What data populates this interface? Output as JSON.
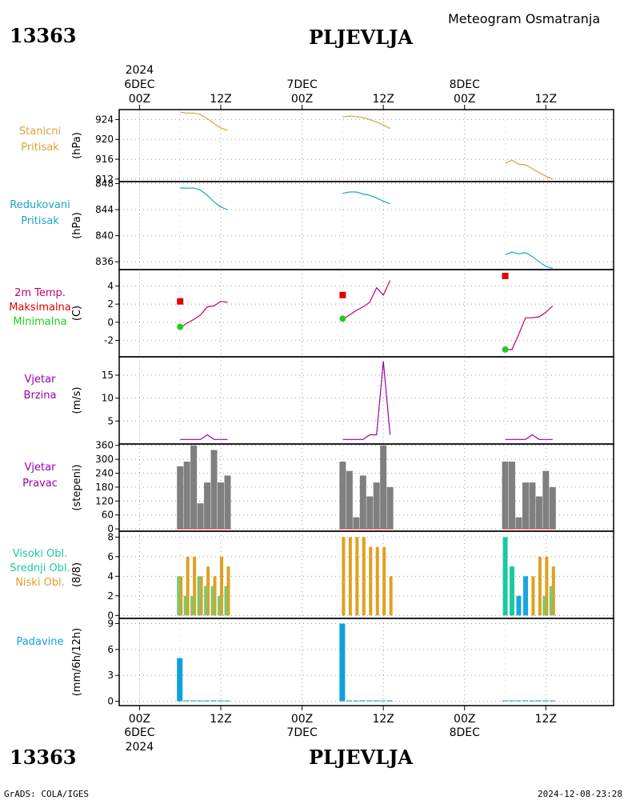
{
  "header": {
    "station_id": "13363",
    "city": "PLJEVLJA",
    "product_title": "Meteogram Osmatranja"
  },
  "footer": {
    "station_id": "13363",
    "city": "PLJEVLJA",
    "credit": "GrADS: COLA/IGES",
    "timestamp": "2024-12-08-23:28"
  },
  "time_axis": {
    "top_year": "2024",
    "bottom_year": "2024",
    "days": [
      "6DEC",
      "7DEC",
      "8DEC"
    ],
    "ticks": [
      "00Z",
      "12Z",
      "00Z",
      "12Z",
      "00Z",
      "12Z"
    ],
    "range_hours": [
      -3,
      70
    ]
  },
  "colors": {
    "pressure": "#d9a23b",
    "reduced": "#1aa6c9",
    "tmax": "#e00000",
    "tmin": "#22cc22",
    "temp_line": "#c0006a",
    "wind": "#9900aa",
    "wind_label": "#9900aa",
    "winddir_bar": "#7f7f7f",
    "high_cloud": "#1ac9a0",
    "mid_cloud": "#1aa6e0",
    "low_cloud": "#e0a020",
    "precip": "#10a0e0"
  },
  "chart_data": [
    {
      "type": "line",
      "panel": "stanicni",
      "label_lines": [
        "Stanicni",
        "Pritisak"
      ],
      "ylabel": "(hPa)",
      "ylim": [
        911.5,
        926
      ],
      "yticks": [
        912,
        916,
        920,
        924
      ],
      "series": [
        {
          "x": [
            6,
            7,
            8,
            9,
            10,
            11,
            12,
            13
          ],
          "values": [
            925.5,
            925.3,
            925.3,
            925.0,
            924.2,
            923.2,
            922.3,
            921.8
          ]
        },
        {
          "x": [
            30,
            31,
            32,
            33,
            34,
            35,
            36,
            37
          ],
          "values": [
            924.5,
            924.7,
            924.6,
            924.4,
            924.0,
            923.5,
            922.9,
            922.2
          ]
        },
        {
          "x": [
            54,
            55,
            56,
            57,
            58,
            59,
            60,
            61
          ],
          "values": [
            915.2,
            915.8,
            915.0,
            914.9,
            914.1,
            913.3,
            912.6,
            912.0
          ]
        }
      ]
    },
    {
      "type": "line",
      "panel": "redukovani",
      "label_lines": [
        "Redukovani",
        "Pritisak"
      ],
      "ylabel": "(hPa)",
      "ylim": [
        834.8,
        848.3
      ],
      "yticks": [
        836,
        840,
        844,
        848
      ],
      "series": [
        {
          "x": [
            6,
            7,
            8,
            9,
            10,
            11,
            12,
            13
          ],
          "values": [
            847.3,
            847.3,
            847.3,
            847.0,
            846.2,
            845.2,
            844.4,
            844.0
          ]
        },
        {
          "x": [
            30,
            31,
            32,
            33,
            34,
            35,
            36,
            37
          ],
          "values": [
            846.5,
            846.7,
            846.7,
            846.4,
            846.2,
            845.8,
            845.3,
            844.9
          ]
        },
        {
          "x": [
            54,
            55,
            56,
            57,
            58,
            59,
            60,
            61
          ],
          "values": [
            837.1,
            837.5,
            837.2,
            837.4,
            836.8,
            836.0,
            835.3,
            835.0
          ]
        }
      ]
    },
    {
      "type": "line",
      "panel": "temperatura",
      "label_lines": [
        "2m Temp.",
        "Maksimalna",
        "Minimalna"
      ],
      "ylabel": "(C)",
      "ylim": [
        -3.8,
        5.8
      ],
      "yticks": [
        -2,
        0,
        2,
        4
      ],
      "series": [
        {
          "x": [
            6,
            7,
            8,
            9,
            10,
            11,
            12,
            13
          ],
          "values": [
            -0.6,
            -0.1,
            0.3,
            0.8,
            1.7,
            1.8,
            2.3,
            2.2
          ]
        },
        {
          "x": [
            30,
            31,
            32,
            33,
            34,
            35,
            36,
            37
          ],
          "values": [
            0.3,
            0.8,
            1.3,
            1.7,
            2.2,
            3.8,
            3.0,
            4.6
          ]
        },
        {
          "x": [
            54,
            55,
            56,
            57,
            58,
            59,
            60,
            61
          ],
          "values": [
            -3.0,
            -3.0,
            -1.3,
            0.5,
            0.5,
            0.6,
            1.1,
            1.8
          ]
        }
      ],
      "tmax": {
        "x": [
          6,
          30,
          54
        ],
        "values": [
          2.3,
          3.0,
          5.1
        ]
      },
      "tmin": {
        "x": [
          6,
          30,
          54
        ],
        "values": [
          -0.5,
          0.4,
          -3.0
        ]
      }
    },
    {
      "type": "line",
      "panel": "vjetar_brzina",
      "label_lines": [
        "Vjetar",
        "Brzina"
      ],
      "ylabel": "(m/s)",
      "ylim": [
        0,
        19
      ],
      "yticks": [
        5,
        10,
        15
      ],
      "series": [
        {
          "x": [
            6,
            7,
            8,
            9,
            10,
            11,
            12,
            13
          ],
          "values": [
            1,
            1,
            1,
            1,
            2,
            1,
            1,
            1
          ]
        },
        {
          "x": [
            30,
            31,
            32,
            33,
            34,
            35,
            36,
            37
          ],
          "values": [
            1,
            1,
            1,
            1,
            2,
            2,
            18,
            2
          ]
        },
        {
          "x": [
            54,
            55,
            56,
            57,
            58,
            59,
            60,
            61
          ],
          "values": [
            1,
            1,
            1,
            1,
            2,
            1,
            1,
            1
          ]
        }
      ]
    },
    {
      "type": "bar",
      "panel": "vjetar_pravac",
      "label_lines": [
        "Vjetar",
        "Pravac"
      ],
      "ylabel": "(stepeni)",
      "ylim": [
        -10,
        366
      ],
      "yticks": [
        0,
        60,
        120,
        180,
        240,
        300,
        360
      ],
      "x": [
        6,
        7,
        8,
        9,
        10,
        11,
        12,
        13,
        30,
        31,
        32,
        33,
        34,
        35,
        36,
        37,
        54,
        55,
        56,
        57,
        58,
        59,
        60,
        61
      ],
      "values": [
        270,
        290,
        360,
        110,
        200,
        340,
        200,
        230,
        290,
        250,
        50,
        230,
        140,
        200,
        360,
        180,
        290,
        290,
        50,
        200,
        200,
        140,
        250,
        180
      ]
    },
    {
      "type": "bar",
      "panel": "oblacnost",
      "label_lines": [
        "Visoki Obl.",
        "Srednji Obl.",
        "Niski Obl."
      ],
      "ylabel": "(8/8)",
      "ylim": [
        -0.3,
        8.6
      ],
      "yticks": [
        0,
        2,
        4,
        6,
        8
      ],
      "x": [
        6,
        7,
        8,
        9,
        10,
        11,
        12,
        13,
        30,
        31,
        32,
        33,
        34,
        35,
        36,
        37,
        54,
        55,
        56,
        57,
        58,
        59,
        60,
        61
      ],
      "series": [
        {
          "name": "Visoki Obl.",
          "values": [
            4,
            2,
            2,
            4,
            3,
            3,
            2,
            3,
            0,
            0,
            0,
            0,
            0,
            0,
            0,
            0,
            8,
            5,
            0,
            0,
            0,
            0,
            2,
            3
          ]
        },
        {
          "name": "Srednji Obl.",
          "values": [
            0,
            0,
            0,
            0,
            0,
            0,
            0,
            0,
            0,
            0,
            0,
            0,
            0,
            0,
            0,
            0,
            0,
            0,
            2,
            4,
            0,
            0,
            0,
            0
          ]
        },
        {
          "name": "Niski Obl.",
          "values": [
            4,
            6,
            6,
            4,
            5,
            4,
            6,
            5,
            8,
            8,
            8,
            8,
            7,
            7,
            7,
            4,
            0,
            0,
            0,
            4,
            4,
            6,
            6,
            5
          ]
        }
      ]
    },
    {
      "type": "bar",
      "panel": "padavine",
      "label_lines": [
        "Padavine"
      ],
      "ylabel": "(mm/6h/12h)",
      "ylim": [
        -0.5,
        9.6
      ],
      "yticks": [
        0,
        3,
        6,
        9
      ],
      "x": [
        6,
        7,
        8,
        9,
        10,
        11,
        12,
        13,
        30,
        31,
        32,
        33,
        34,
        35,
        36,
        37,
        54,
        55,
        56,
        57,
        58,
        59,
        60,
        61
      ],
      "values": [
        5,
        0.1,
        0.1,
        0.1,
        0.1,
        0.1,
        0.1,
        0.1,
        9,
        0.1,
        0.1,
        0.1,
        0.1,
        0.1,
        0.1,
        0.1,
        0.1,
        0.1,
        0.1,
        0.1,
        0.1,
        0.1,
        0.1,
        0.1
      ]
    }
  ]
}
